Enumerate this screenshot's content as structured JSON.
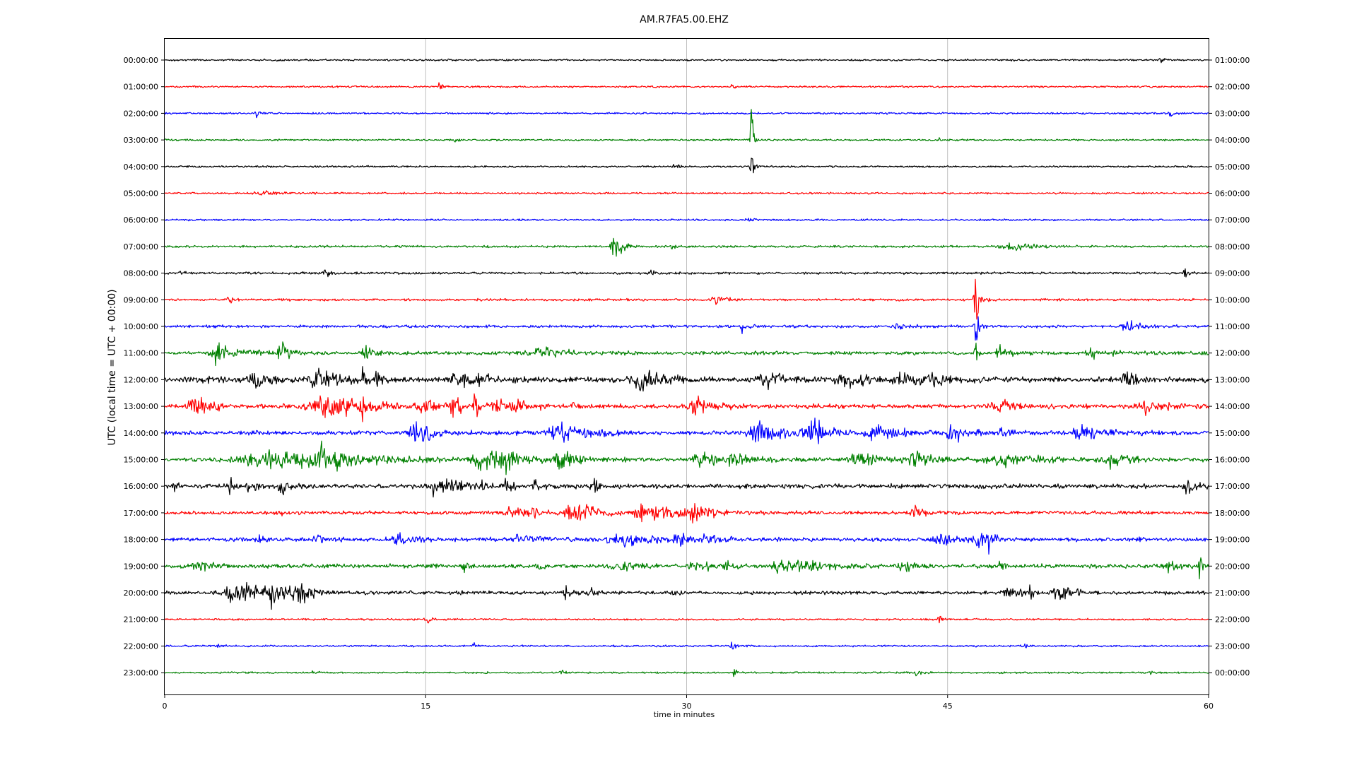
{
  "chart_data": {
    "type": "line",
    "title": "AM.R7FA5.00.EHZ",
    "xlabel": "time in minutes",
    "ylabel": "UTC (local time = UTC + 00:00)",
    "xlim": [
      0,
      60
    ],
    "xticks": [
      "0",
      "15",
      "30",
      "45",
      "60"
    ],
    "x_gridlines": [
      15,
      30,
      45
    ],
    "trace_colors": [
      "#000000",
      "#ff0000",
      "#0000ff",
      "#008000"
    ],
    "left_labels": [
      "00:00:00",
      "01:00:00",
      "02:00:00",
      "03:00:00",
      "04:00:00",
      "05:00:00",
      "06:00:00",
      "07:00:00",
      "08:00:00",
      "09:00:00",
      "10:00:00",
      "11:00:00",
      "12:00:00",
      "13:00:00",
      "14:00:00",
      "15:00:00",
      "16:00:00",
      "17:00:00",
      "18:00:00",
      "19:00:00",
      "20:00:00",
      "21:00:00",
      "22:00:00",
      "23:00:00"
    ],
    "right_labels": [
      "01:00:00",
      "02:00:00",
      "03:00:00",
      "04:00:00",
      "05:00:00",
      "06:00:00",
      "07:00:00",
      "08:00:00",
      "09:00:00",
      "10:00:00",
      "11:00:00",
      "12:00:00",
      "13:00:00",
      "14:00:00",
      "15:00:00",
      "16:00:00",
      "17:00:00",
      "18:00:00",
      "19:00:00",
      "20:00:00",
      "21:00:00",
      "22:00:00",
      "23:00:00",
      "00:00:00"
    ],
    "rows": [
      {
        "noise": 1.0,
        "events": [
          [
            57.3,
            6,
            0.2
          ]
        ]
      },
      {
        "noise": 1.0,
        "events": [
          [
            15.8,
            5,
            0.2
          ],
          [
            32.6,
            4,
            0.1
          ]
        ]
      },
      {
        "noise": 1.0,
        "events": [
          [
            5.3,
            4,
            0.2
          ],
          [
            30.9,
            4,
            0.1
          ],
          [
            57.8,
            5,
            0.2
          ]
        ]
      },
      {
        "noise": 1.0,
        "events": [
          [
            16.6,
            3,
            0.2
          ],
          [
            33.7,
            50,
            0.12
          ],
          [
            44.5,
            3,
            0.1
          ]
        ]
      },
      {
        "noise": 1.0,
        "events": [
          [
            29.3,
            3,
            0.2
          ],
          [
            33.7,
            28,
            0.1
          ]
        ]
      },
      {
        "noise": 1.0,
        "events": [
          [
            5.5,
            2,
            1.0
          ]
        ]
      },
      {
        "noise": 1.0,
        "events": [
          [
            33.5,
            2,
            0.2
          ]
        ]
      },
      {
        "noise": 1.2,
        "events": [
          [
            25.8,
            16,
            0.4
          ],
          [
            29.2,
            4,
            0.2
          ],
          [
            48.8,
            6,
            1.0
          ]
        ]
      },
      {
        "noise": 1.3,
        "events": [
          [
            1.0,
            5,
            0.2
          ],
          [
            9.2,
            5,
            0.2
          ],
          [
            28.0,
            5,
            0.2
          ],
          [
            58.6,
            5,
            0.2
          ]
        ]
      },
      {
        "noise": 1.3,
        "events": [
          [
            3.7,
            5,
            0.2
          ],
          [
            31.7,
            6,
            0.5
          ],
          [
            46.6,
            26,
            0.2
          ]
        ]
      },
      {
        "noise": 1.5,
        "events": [
          [
            33.2,
            7,
            0.2
          ],
          [
            42.1,
            5,
            0.4
          ],
          [
            46.6,
            35,
            0.15
          ],
          [
            55.4,
            6,
            0.8
          ]
        ]
      },
      {
        "noise": 2.0,
        "events": [
          [
            3.0,
            12,
            1.0
          ],
          [
            6.7,
            10,
            0.5
          ],
          [
            11.5,
            7,
            0.5
          ],
          [
            21.5,
            6,
            1.5
          ],
          [
            46.6,
            35,
            0.12
          ],
          [
            48.0,
            6,
            0.6
          ],
          [
            53.3,
            6,
            0.6
          ]
        ]
      },
      {
        "noise": 3.0,
        "events": [
          [
            2.5,
            9,
            0.4
          ],
          [
            5.2,
            10,
            0.8
          ],
          [
            9.0,
            9,
            1.2
          ],
          [
            11.4,
            32,
            0.12
          ],
          [
            12.2,
            7,
            0.3
          ],
          [
            17.0,
            8,
            1.5
          ],
          [
            27.3,
            10,
            1.2
          ],
          [
            34.8,
            8,
            1.0
          ],
          [
            39.0,
            9,
            1.0
          ],
          [
            42.5,
            8,
            1.2
          ],
          [
            44.1,
            8,
            0.6
          ],
          [
            55.3,
            10,
            0.6
          ]
        ]
      },
      {
        "noise": 2.5,
        "events": [
          [
            1.8,
            12,
            0.8
          ],
          [
            9.5,
            12,
            2.4
          ],
          [
            11.3,
            22,
            0.12
          ],
          [
            15.0,
            7,
            0.6
          ],
          [
            16.6,
            12,
            0.5
          ],
          [
            17.8,
            20,
            0.2
          ],
          [
            19.1,
            9,
            0.6
          ],
          [
            20.4,
            8,
            0.6
          ],
          [
            23.5,
            10,
            0.15
          ],
          [
            30.5,
            12,
            1.0
          ],
          [
            48.0,
            6,
            1.0
          ],
          [
            56.5,
            6,
            1.0
          ]
        ]
      },
      {
        "noise": 2.5,
        "events": [
          [
            14.4,
            12,
            0.8
          ],
          [
            15.0,
            9,
            0.2
          ],
          [
            22.8,
            10,
            1.5
          ],
          [
            34.2,
            14,
            1.2
          ],
          [
            37.2,
            16,
            0.8
          ],
          [
            41.0,
            8,
            1.5
          ],
          [
            45.3,
            10,
            0.6
          ],
          [
            48.0,
            11,
            0.3
          ],
          [
            52.8,
            8,
            1.0
          ]
        ]
      },
      {
        "noise": 2.5,
        "events": [
          [
            6.5,
            10,
            4.0
          ],
          [
            9.0,
            10,
            1.5
          ],
          [
            18.5,
            12,
            1.5
          ],
          [
            19.4,
            15,
            0.3
          ],
          [
            22.8,
            8,
            0.8
          ],
          [
            30.8,
            8,
            1.2
          ],
          [
            32.8,
            9,
            0.6
          ],
          [
            40.0,
            8,
            1.0
          ],
          [
            43.1,
            9,
            0.8
          ],
          [
            48.0,
            8,
            1.5
          ],
          [
            54.5,
            7,
            1.0
          ]
        ]
      },
      {
        "noise": 2.5,
        "events": [
          [
            0.5,
            5,
            0.2
          ],
          [
            3.7,
            10,
            0.3
          ],
          [
            5.0,
            10,
            0.4
          ],
          [
            6.7,
            8,
            0.3
          ],
          [
            15.5,
            10,
            0.4
          ],
          [
            16.4,
            8,
            0.8
          ],
          [
            18.2,
            8,
            0.4
          ],
          [
            19.6,
            8,
            0.3
          ],
          [
            21.3,
            7,
            0.3
          ],
          [
            24.7,
            10,
            0.3
          ],
          [
            58.8,
            9,
            0.5
          ]
        ]
      },
      {
        "noise": 2.0,
        "events": [
          [
            6.7,
            5,
            0.2
          ],
          [
            19.8,
            10,
            0.5
          ],
          [
            21.0,
            7,
            0.5
          ],
          [
            23.5,
            14,
            1.0
          ],
          [
            27.3,
            14,
            0.5
          ],
          [
            28.5,
            8,
            0.8
          ],
          [
            30.5,
            11,
            0.8
          ],
          [
            43.1,
            8,
            0.4
          ]
        ]
      },
      {
        "noise": 2.2,
        "events": [
          [
            5.5,
            6,
            0.3
          ],
          [
            8.8,
            7,
            0.4
          ],
          [
            13.5,
            5,
            1.0
          ],
          [
            20.4,
            6,
            1.0
          ],
          [
            26.5,
            7,
            2.0
          ],
          [
            29.5,
            7,
            0.5
          ],
          [
            31.0,
            6,
            0.5
          ],
          [
            44.7,
            7,
            0.8
          ],
          [
            46.7,
            14,
            0.4
          ],
          [
            47.4,
            8,
            0.3
          ],
          [
            55.9,
            6,
            0.2
          ]
        ]
      },
      {
        "noise": 2.2,
        "events": [
          [
            2.0,
            6,
            0.6
          ],
          [
            17.2,
            6,
            0.3
          ],
          [
            21.6,
            6,
            0.3
          ],
          [
            26.0,
            5,
            1.0
          ],
          [
            30.3,
            9,
            0.4
          ],
          [
            31.2,
            7,
            0.3
          ],
          [
            32.2,
            9,
            0.4
          ],
          [
            35.1,
            7,
            0.4
          ],
          [
            36.5,
            8,
            1.5
          ],
          [
            42.3,
            9,
            0.4
          ],
          [
            48.0,
            8,
            0.2
          ],
          [
            57.8,
            11,
            0.3
          ],
          [
            59.5,
            9,
            0.3
          ]
        ]
      },
      {
        "noise": 2.0,
        "events": [
          [
            4.3,
            12,
            1.5
          ],
          [
            6.3,
            11,
            1.0
          ],
          [
            7.8,
            10,
            0.5
          ],
          [
            23.1,
            7,
            0.5
          ],
          [
            24.6,
            6,
            0.3
          ],
          [
            29.2,
            6,
            0.2
          ],
          [
            48.5,
            6,
            0.6
          ],
          [
            49.7,
            12,
            0.15
          ],
          [
            51.3,
            11,
            0.5
          ],
          [
            51.8,
            7,
            0.4
          ]
        ]
      },
      {
        "noise": 1.0,
        "events": [
          [
            15.0,
            5,
            0.2
          ],
          [
            44.5,
            7,
            0.15
          ]
        ]
      },
      {
        "noise": 1.0,
        "events": [
          [
            3.0,
            3,
            0.2
          ],
          [
            17.8,
            3,
            0.2
          ],
          [
            32.6,
            4,
            0.2
          ],
          [
            49.5,
            3,
            0.2
          ]
        ]
      },
      {
        "noise": 1.0,
        "events": [
          [
            8.5,
            3,
            0.2
          ],
          [
            22.8,
            3,
            0.2
          ],
          [
            32.7,
            4,
            0.2
          ],
          [
            43.2,
            4,
            0.2
          ],
          [
            56.6,
            3,
            0.2
          ]
        ]
      }
    ]
  }
}
